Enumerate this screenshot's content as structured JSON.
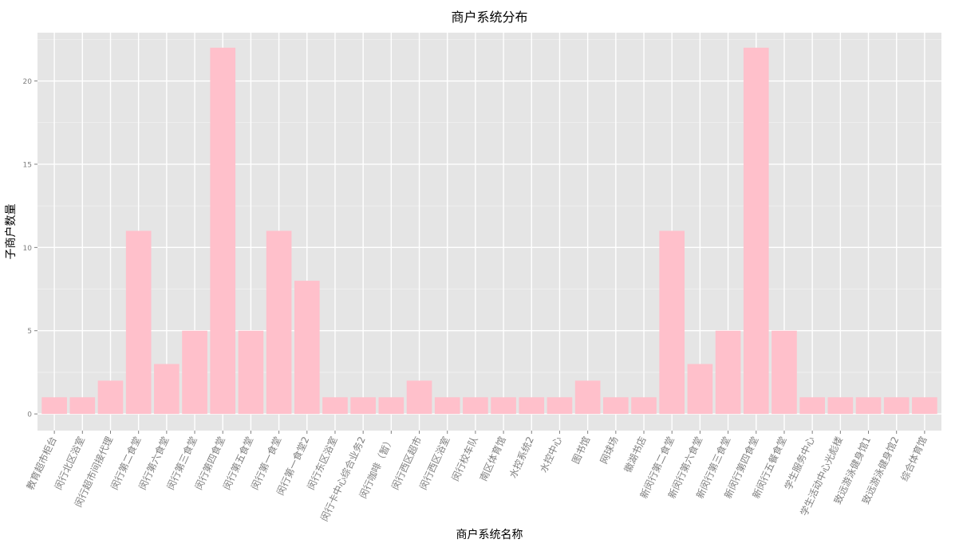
{
  "chart_data": {
    "type": "bar",
    "title": "商户系统分布",
    "xlabel": "商户系统名称",
    "ylabel": "子商户数量",
    "ylim": [
      -1,
      22.9
    ],
    "yticks": [
      0,
      5,
      10,
      15,
      20
    ],
    "grid": true,
    "bar_color": "#FFC0CB",
    "panel_color": "#E5E5E5",
    "grid_color": "#FFFFFF",
    "tick_label_color": "#7F7F7F",
    "categories": [
      "教育超市柜台",
      "闵行北区浴室",
      "闵行超市间接代理",
      "闵行第二食堂",
      "闵行第六食堂",
      "闵行第三食堂",
      "闵行第四食堂",
      "闵行第五食堂",
      "闵行第一食堂",
      "闵行第一食堂2",
      "闵行东区浴室",
      "闵行卡中心综合业务2",
      "闵行咖啡（暂）",
      "闵行西区超市",
      "闵行西区浴室",
      "闵行校车队",
      "南区体育馆",
      "水控系统2",
      "水控中心",
      "图书馆",
      "网球场",
      "徽湖书店",
      "新闵行第二食堂",
      "新闵行第六食堂",
      "新闵行第三食堂",
      "新闵行第四食堂",
      "新闵行五餐食堂",
      "学生服务中心",
      "学生活动中心光彪楼",
      "致远游泳健身馆1",
      "致远游泳健身馆2",
      "综合体育馆"
    ],
    "values": [
      1,
      1,
      2,
      11,
      3,
      5,
      22,
      5,
      11,
      8,
      1,
      1,
      1,
      2,
      1,
      1,
      1,
      1,
      1,
      2,
      1,
      1,
      11,
      3,
      5,
      22,
      5,
      1,
      1,
      1,
      1,
      1
    ]
  }
}
